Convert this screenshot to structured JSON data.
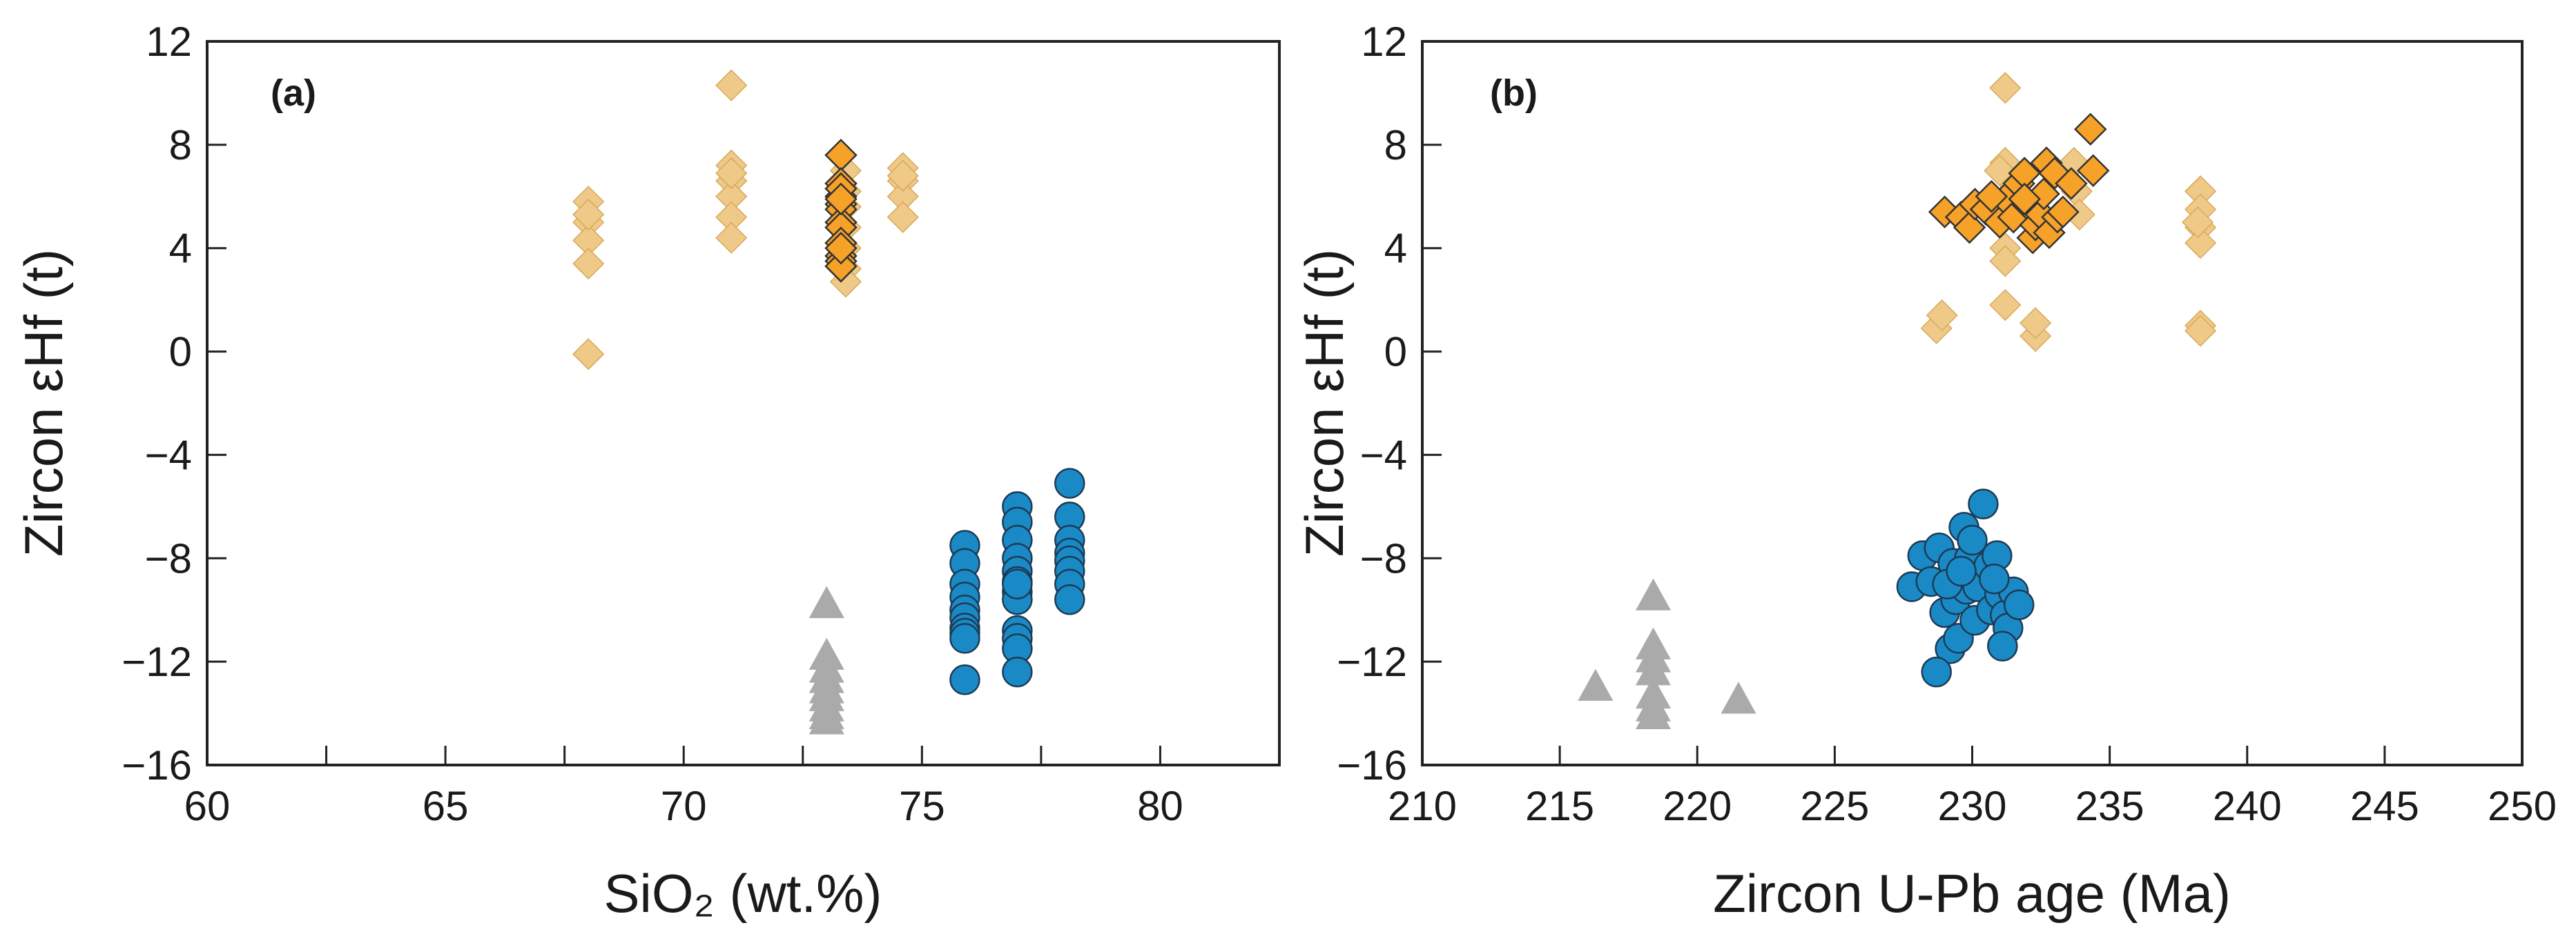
{
  "chart_data": [
    {
      "type": "scatter",
      "panel": "(a)",
      "xlabel": "SiO₂ (wt.%)",
      "ylabel": "Zircon εHf (t)",
      "xlim": [
        60,
        82.5
      ],
      "ylim": [
        -16,
        12
      ],
      "xticks": [
        60,
        62.5,
        65,
        67.5,
        70,
        72.5,
        75,
        77.5,
        80
      ],
      "xtick_labels": [
        {
          "v": 60,
          "t": "60"
        },
        {
          "v": 65,
          "t": "65"
        },
        {
          "v": 70,
          "t": "70"
        },
        {
          "v": 75,
          "t": "75"
        },
        {
          "v": 80,
          "t": "80"
        }
      ],
      "yticks": [
        {
          "v": 12,
          "t": "12"
        },
        {
          "v": 8,
          "t": "8"
        },
        {
          "v": 4,
          "t": "4"
        },
        {
          "v": 0,
          "t": "0"
        },
        {
          "v": -4,
          "t": "−4"
        },
        {
          "v": -8,
          "t": "−8"
        },
        {
          "v": -12,
          "t": "−12"
        },
        {
          "v": -16,
          "t": "−16"
        }
      ],
      "series": [
        {
          "name": "light-diamond",
          "marker": "diamond",
          "color": "#EFC987",
          "edge": "#D8A85A",
          "x": [
            68,
            68,
            68,
            68,
            68,
            68,
            71,
            71,
            71,
            71,
            71,
            71,
            71,
            73.4,
            73.4,
            73.4,
            73.4,
            73.4,
            73.4,
            73.4,
            74.6,
            74.6,
            74.6,
            74.6,
            74.6
          ],
          "y": [
            5.8,
            5.0,
            4.3,
            3.4,
            -0.1,
            5.3,
            10.3,
            7.2,
            6.6,
            6.0,
            5.2,
            4.4,
            6.9,
            7.0,
            6.2,
            5.6,
            4.8,
            4.0,
            3.2,
            2.7,
            7.1,
            6.6,
            6.0,
            5.2,
            6.8
          ]
        },
        {
          "name": "orange-diamond",
          "marker": "diamond",
          "color": "#F6A128",
          "edge": "#333333",
          "x": [
            73.3,
            73.3,
            73.3,
            73.3,
            73.3,
            73.3,
            73.3,
            73.3,
            73.3,
            73.3,
            73.3,
            73.3,
            73.3,
            73.3
          ],
          "y": [
            7.6,
            6.5,
            6.0,
            5.7,
            5.5,
            5.0,
            4.8,
            4.2,
            3.7,
            3.5,
            3.3,
            6.3,
            5.9,
            4.0
          ]
        },
        {
          "name": "blue-circle",
          "marker": "circle",
          "color": "#1A8AC6",
          "edge": "#1D3B55",
          "x": [
            75.9,
            75.9,
            75.9,
            75.9,
            75.9,
            75.9,
            75.9,
            75.9,
            75.9,
            75.9,
            77,
            77,
            77,
            77,
            77,
            77,
            77,
            77,
            77,
            77,
            77,
            77,
            77,
            78.1,
            78.1,
            78.1,
            78.1,
            78.1,
            78.1,
            78.1,
            78.1
          ],
          "y": [
            -7.5,
            -8.2,
            -9.0,
            -9.5,
            -10.0,
            -10.3,
            -10.7,
            -10.9,
            -11.1,
            -12.7,
            -6.0,
            -6.6,
            -7.3,
            -8.0,
            -8.5,
            -8.9,
            -9.3,
            -9.6,
            -10.8,
            -11.1,
            -11.5,
            -12.4,
            -9.0,
            -5.1,
            -6.4,
            -7.3,
            -7.8,
            -8.1,
            -8.5,
            -9.0,
            -9.6
          ]
        },
        {
          "name": "grey-triangle",
          "marker": "triangle",
          "color": "#AAAAAA",
          "edge": "#AAAAAA",
          "x": [
            73,
            73,
            73,
            73,
            73,
            73,
            73,
            73,
            73
          ],
          "y": [
            -9.8,
            -11.8,
            -12.3,
            -12.7,
            -13.1,
            -13.4,
            -13.8,
            -14.1,
            -14.3
          ]
        }
      ]
    },
    {
      "type": "scatter",
      "panel": "(b)",
      "xlabel": "Zircon U-Pb age (Ma)",
      "ylabel": "Zircon εHf (t)",
      "xlim": [
        210,
        250
      ],
      "ylim": [
        -16,
        12
      ],
      "xticks": [
        210,
        215,
        220,
        225,
        230,
        235,
        240,
        245,
        250
      ],
      "xtick_labels": [
        {
          "v": 210,
          "t": "210"
        },
        {
          "v": 215,
          "t": "215"
        },
        {
          "v": 220,
          "t": "220"
        },
        {
          "v": 225,
          "t": "225"
        },
        {
          "v": 230,
          "t": "230"
        },
        {
          "v": 235,
          "t": "235"
        },
        {
          "v": 240,
          "t": "240"
        },
        {
          "v": 245,
          "t": "245"
        },
        {
          "v": 250,
          "t": "250"
        }
      ],
      "yticks": [
        {
          "v": 12,
          "t": "12"
        },
        {
          "v": 8,
          "t": "8"
        },
        {
          "v": 4,
          "t": "4"
        },
        {
          "v": 0,
          "t": "0"
        },
        {
          "v": -4,
          "t": "−4"
        },
        {
          "v": -8,
          "t": "−8"
        },
        {
          "v": -12,
          "t": "−12"
        },
        {
          "v": -16,
          "t": "−16"
        }
      ],
      "series": [
        {
          "name": "light-diamond",
          "marker": "diamond",
          "color": "#EFC987",
          "edge": "#D8A85A",
          "x": [
            228.7,
            228.9,
            231.2,
            231.2,
            231.2,
            231.2,
            231.2,
            231.2,
            231.3,
            231.0,
            232.3,
            232.3,
            233.7,
            233.8,
            233.9,
            238.3,
            238.3,
            238.3,
            238.3,
            238.3,
            238.3,
            238.2
          ],
          "y": [
            0.9,
            1.4,
            10.2,
            7.3,
            6.8,
            4.0,
            3.5,
            1.8,
            5.5,
            7.0,
            0.6,
            1.1,
            7.3,
            6.2,
            5.3,
            6.2,
            5.5,
            4.8,
            4.2,
            1.0,
            0.8,
            5.0
          ]
        },
        {
          "name": "orange-diamond",
          "marker": "diamond",
          "color": "#F6A128",
          "edge": "#333333",
          "x": [
            229.0,
            229.6,
            229.9,
            230.1,
            230.5,
            231.0,
            231.2,
            231.5,
            231.7,
            231.9,
            232.0,
            232.2,
            232.3,
            232.5,
            232.6,
            232.7,
            232.8,
            233.0,
            233.1,
            233.3,
            233.6,
            234.3,
            234.4,
            230.7,
            231.9
          ],
          "y": [
            5.4,
            5.2,
            4.8,
            5.7,
            5.5,
            5.0,
            5.9,
            5.2,
            6.5,
            6.9,
            5.7,
            4.4,
            4.9,
            5.3,
            6.1,
            7.3,
            4.6,
            6.9,
            5.2,
            5.4,
            6.5,
            8.6,
            7.0,
            6.0,
            5.9
          ]
        },
        {
          "name": "blue-circle",
          "marker": "circle",
          "color": "#1A8AC6",
          "edge": "#1D3B55",
          "x": [
            227.8,
            228.2,
            228.5,
            228.8,
            229.0,
            229.2,
            229.3,
            229.4,
            229.5,
            229.7,
            229.8,
            229.9,
            230.0,
            230.1,
            230.2,
            230.4,
            230.6,
            230.7,
            230.9,
            231.0,
            231.2,
            231.3,
            231.5,
            231.7,
            228.7,
            229.1,
            229.6,
            230.8,
            231.1
          ],
          "y": [
            -9.1,
            -7.9,
            -8.9,
            -7.6,
            -10.1,
            -11.5,
            -8.2,
            -9.6,
            -11.1,
            -6.8,
            -9.2,
            -8.0,
            -7.3,
            -10.4,
            -9.1,
            -5.9,
            -8.3,
            -10.0,
            -7.9,
            -9.4,
            -10.2,
            -10.7,
            -9.3,
            -9.8,
            -12.4,
            -9.0,
            -8.5,
            -8.8,
            -11.4
          ]
        },
        {
          "name": "grey-triangle",
          "marker": "triangle",
          "color": "#AAAAAA",
          "edge": "#AAAAAA",
          "x": [
            216.3,
            218.4,
            218.4,
            218.4,
            218.4,
            218.4,
            218.4,
            218.4,
            221.5
          ],
          "y": [
            -13.0,
            -9.5,
            -11.4,
            -11.9,
            -12.4,
            -13.3,
            -13.8,
            -14.1,
            -13.5
          ]
        }
      ]
    }
  ]
}
